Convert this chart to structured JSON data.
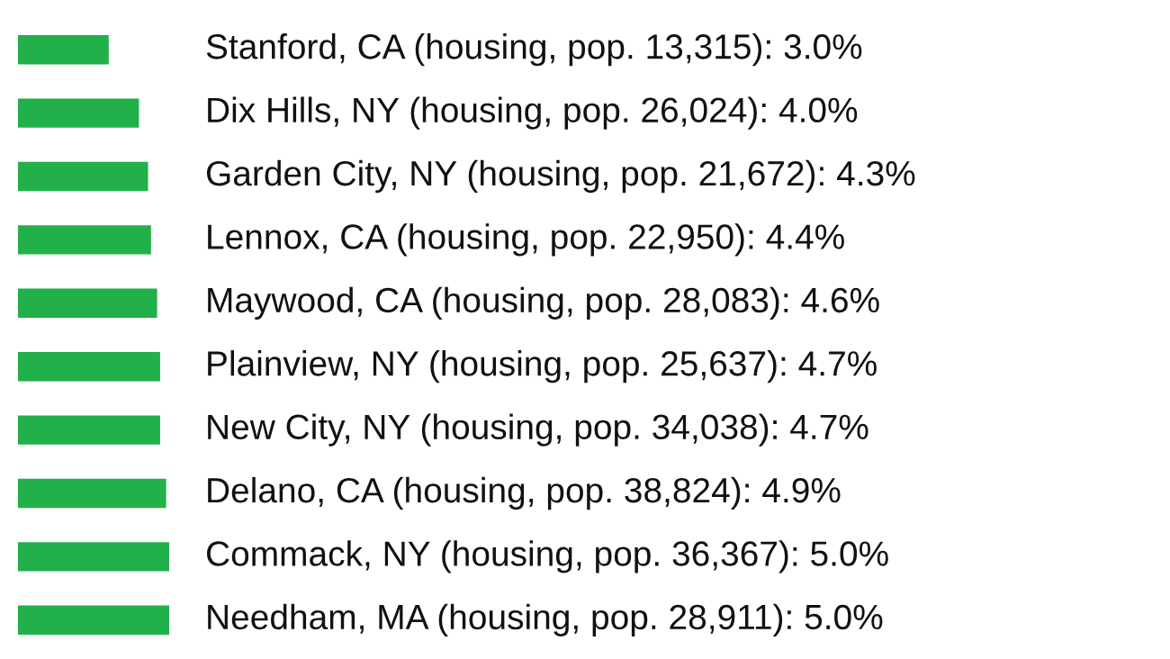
{
  "chart_data": {
    "type": "bar",
    "orientation": "horizontal",
    "categories": [
      null,
      null,
      null,
      null,
      null,
      null,
      null,
      null,
      null,
      null
    ],
    "values": [
      3.0,
      4.0,
      4.3,
      4.4,
      4.6,
      4.7,
      4.7,
      4.9,
      5.0,
      5.0
    ],
    "value_labels": [
      "Stanford, CA (housing, pop. 13,315): 3.0%",
      "Dix Hills, NY (housing, pop. 26,024): 4.0%",
      "Garden City, NY (housing, pop. 21,672): 4.3%",
      "Lennox, CA (housing, pop. 22,950): 4.4%",
      "Maywood, CA (housing, pop. 28,083): 4.6%",
      "Plainview, NY (housing, pop. 25,637): 4.7%",
      "New City, NY (housing, pop. 34,038): 4.7%",
      "Delano, CA (housing, pop. 38,824): 4.9%",
      "Commack, NY (housing, pop. 36,367): 5.0%",
      "Needham, MA (housing, pop. 28,911): 5.0%"
    ],
    "color": "#22b04b"
  }
}
